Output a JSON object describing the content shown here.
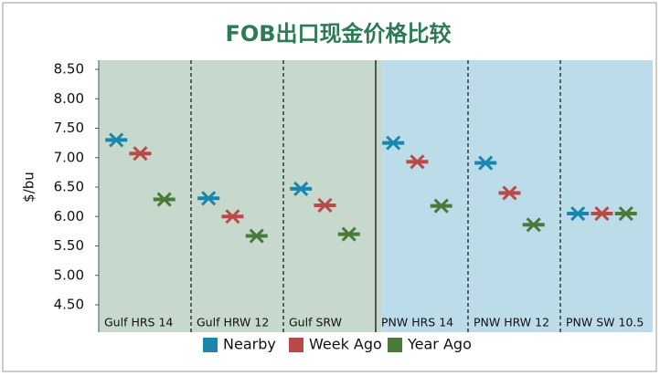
{
  "chart_data": {
    "type": "scatter",
    "title": "FOB出口现金价格比较",
    "ylabel": "$/bu",
    "categories": [
      "Gulf HRS 14",
      "Gulf HRW 12",
      "Gulf SRW",
      "PNW HRS 14",
      "PNW HRW 12",
      "PNW SW 10.5"
    ],
    "series": [
      {
        "name": "Nearby",
        "color": "#1a86ad",
        "values": [
          7.3,
          6.31,
          6.47,
          7.25,
          6.91,
          6.05
        ]
      },
      {
        "name": "Week Ago",
        "color": "#b94a48",
        "values": [
          7.07,
          6.0,
          6.19,
          6.93,
          6.4,
          6.05
        ]
      },
      {
        "name": "Year Ago",
        "color": "#4a7a3a",
        "values": [
          6.29,
          5.67,
          5.7,
          6.18,
          5.86,
          6.05
        ]
      }
    ],
    "ylim": [
      4.5,
      8.5
    ],
    "yticks": [
      {
        "value": 4.5,
        "label": "4.50"
      },
      {
        "value": 5,
        "label": "5.00"
      },
      {
        "value": 5.5,
        "label": "5.50"
      },
      {
        "value": 6,
        "label": "6.00"
      },
      {
        "value": 6.5,
        "label": "6.50"
      },
      {
        "value": 7,
        "label": "7.00"
      },
      {
        "value": 7.5,
        "label": "7.50"
      },
      {
        "value": 8,
        "label": "8.00"
      },
      {
        "value": 8.5,
        "label": "8.50"
      }
    ],
    "legend": "bottom"
  }
}
